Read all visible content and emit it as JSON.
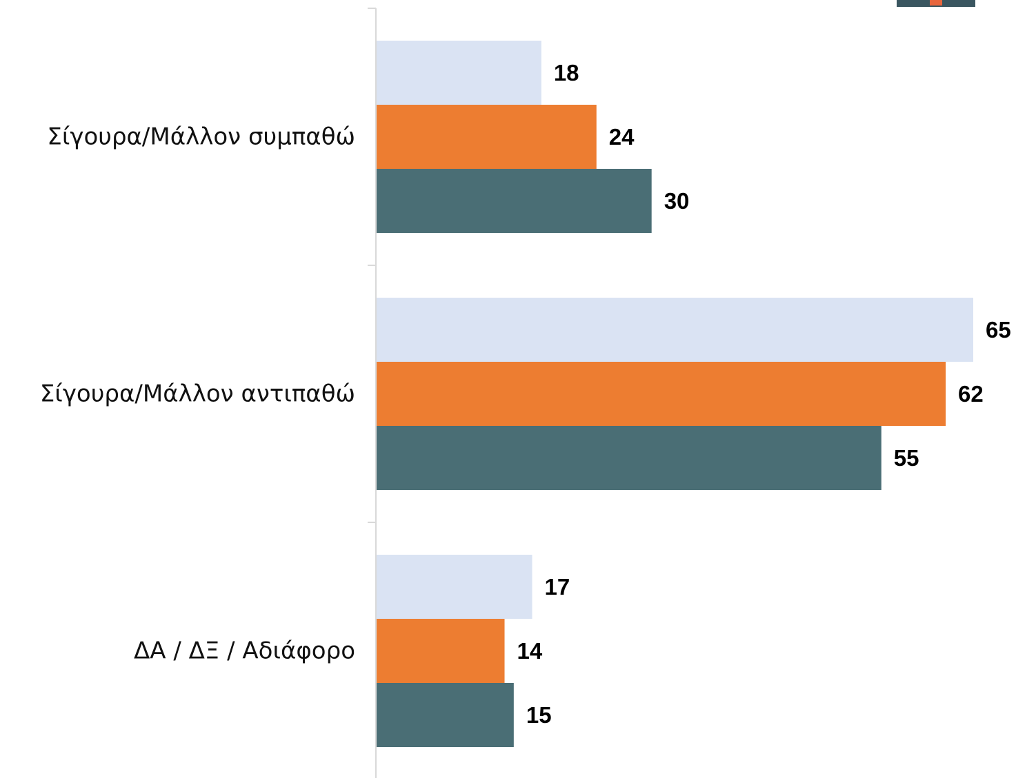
{
  "chart_data": {
    "type": "bar",
    "orientation": "horizontal",
    "categories": [
      "Σίγουρα/Μάλλον συμπαθώ",
      "Σίγουρα/Μάλλον αντιπαθώ",
      "ΔΑ / ΔΞ / Αδιάφορο"
    ],
    "series": [
      {
        "values": [
          18,
          65,
          17
        ],
        "color": "#dae3f3"
      },
      {
        "values": [
          24,
          62,
          14
        ],
        "color": "#ed7d31"
      },
      {
        "values": [
          30,
          55,
          15
        ],
        "color": "#4a6e75"
      }
    ],
    "xlim": [
      0,
      65
    ],
    "grid": false,
    "legend": "none",
    "data_labels": true
  }
}
